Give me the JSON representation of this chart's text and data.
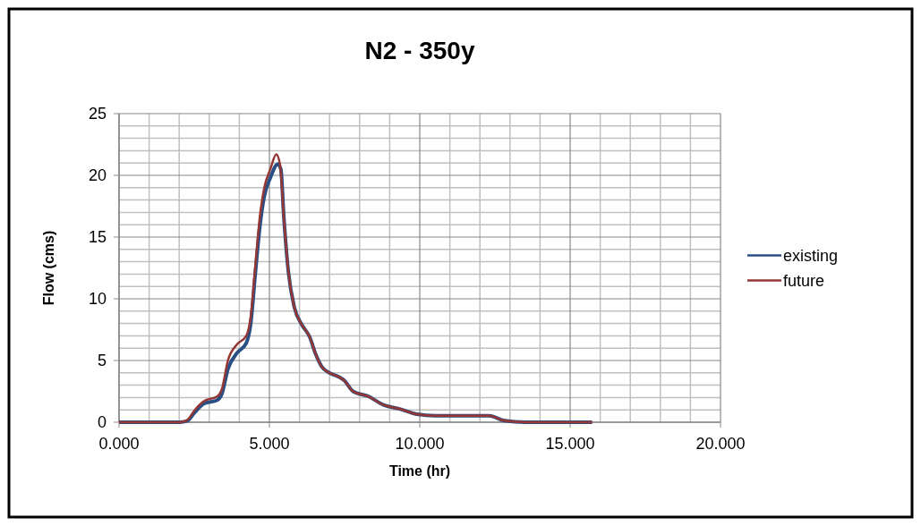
{
  "chart_data": {
    "type": "line",
    "title": "N2 - 350y",
    "xlabel": "Time (hr)",
    "ylabel": "Flow (cms)",
    "xlim": [
      0,
      20
    ],
    "xticks": [
      {
        "value": 0,
        "label": "0.000"
      },
      {
        "value": 5,
        "label": "5.000"
      },
      {
        "value": 10,
        "label": "10.000"
      },
      {
        "value": 15,
        "label": "15.000"
      },
      {
        "value": 20,
        "label": "20.000"
      }
    ],
    "ylim": [
      0,
      25
    ],
    "yticks": [
      0,
      5,
      10,
      15,
      20,
      25
    ],
    "grid": true,
    "legend": "right",
    "marker": "none",
    "line_style": "solid",
    "series": [
      {
        "name": "existing",
        "color": "#2a4f84",
        "x": [
          0,
          2.01,
          2.26,
          2.52,
          2.82,
          3.27,
          3.42,
          3.62,
          3.92,
          4.23,
          4.38,
          4.53,
          4.68,
          4.83,
          5.03,
          5.28,
          5.38,
          5.48,
          5.63,
          5.83,
          6.08,
          6.34,
          6.54,
          6.74,
          6.99,
          7.29,
          7.48,
          7.78,
          8.29,
          8.79,
          9.3,
          9.9,
          10.5,
          12.31,
          12.82,
          13.5,
          15.73
        ],
        "values": [
          0,
          0,
          0.1,
          0.8,
          1.5,
          1.8,
          2.3,
          4.3,
          5.6,
          6.4,
          8,
          12,
          15.8,
          18.3,
          19.8,
          20.9,
          20.5,
          16.6,
          12.2,
          9.3,
          7.9,
          6.9,
          5.5,
          4.5,
          4,
          3.7,
          3.4,
          2.5,
          2.1,
          1.4,
          1.1,
          0.65,
          0.53,
          0.53,
          0.12,
          0,
          0
        ]
      },
      {
        "name": "future",
        "color": "#953735",
        "x": [
          0,
          2.01,
          2.26,
          2.52,
          2.82,
          3.27,
          3.42,
          3.62,
          3.92,
          4.23,
          4.38,
          4.53,
          4.68,
          4.83,
          5.03,
          5.23,
          5.35,
          5.48,
          5.63,
          5.83,
          6.08,
          6.34,
          6.54,
          6.74,
          6.99,
          7.29,
          7.48,
          7.78,
          8.29,
          8.79,
          9.3,
          9.9,
          10.5,
          12.31,
          12.82,
          13.5,
          15.73
        ],
        "values": [
          0,
          0,
          0.17,
          1,
          1.7,
          2.1,
          2.7,
          5,
          6.3,
          7,
          8.6,
          12.7,
          16.6,
          19,
          20.5,
          21.7,
          20.9,
          16.6,
          12.2,
          9.3,
          7.9,
          6.9,
          5.5,
          4.5,
          4,
          3.7,
          3.4,
          2.5,
          2.1,
          1.4,
          1.1,
          0.65,
          0.53,
          0.53,
          0.12,
          0,
          0
        ]
      }
    ]
  }
}
